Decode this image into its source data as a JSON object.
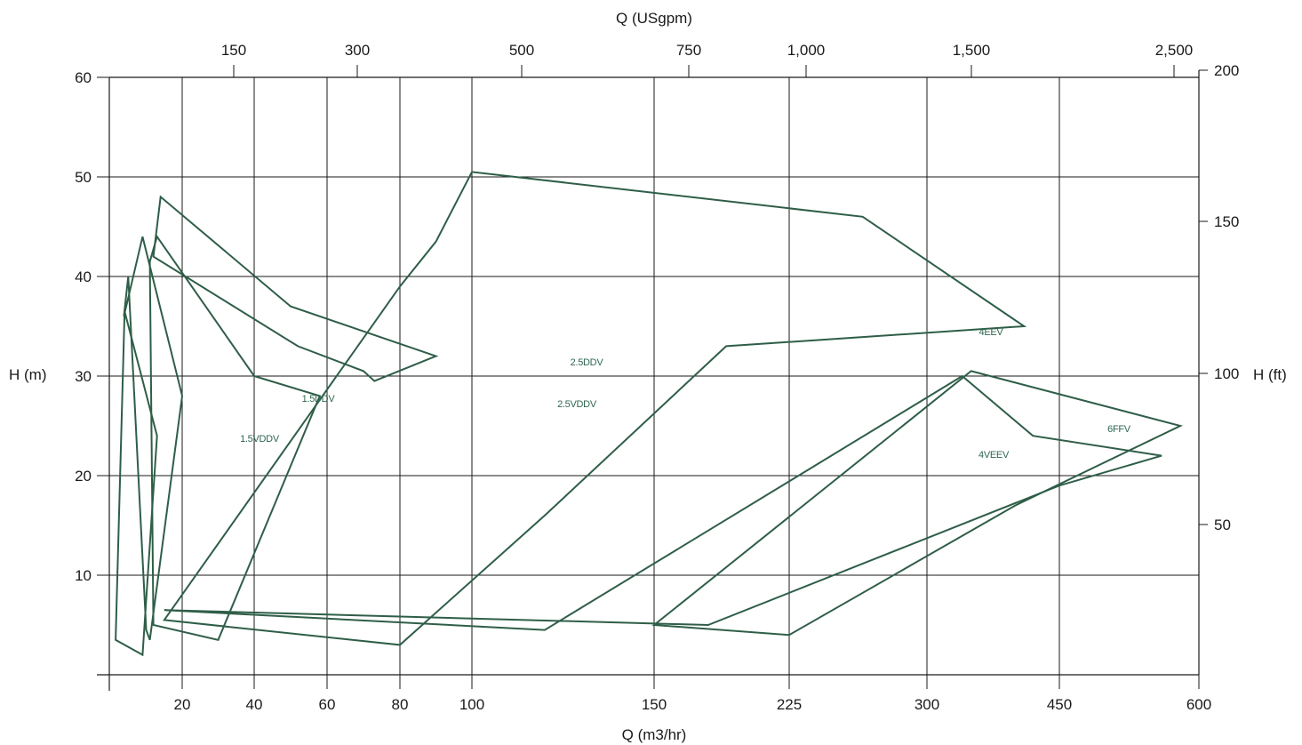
{
  "colors": {
    "curve": "#2f5e48",
    "grid": "#1a1a1a",
    "curve_label": "#2e6650"
  },
  "chart_data": {
    "type": "line",
    "title": "",
    "xlabel": "Q (m3/hr)",
    "x2label": "Q (USgpm)",
    "ylabel": "H (m)",
    "y2label": "H (ft)",
    "x_scale": "log",
    "x_ticks": [
      "20",
      "40",
      "60",
      "80",
      "100",
      "150",
      "225",
      "300",
      "450",
      "600"
    ],
    "x2_ticks": [
      "150",
      "300",
      "500",
      "750",
      "1,000",
      "1,500",
      "2,500"
    ],
    "ylim": [
      0,
      60
    ],
    "y_ticks": [
      "10",
      "20",
      "30",
      "40",
      "50",
      "60"
    ],
    "y2_ticks": [
      "50",
      "100",
      "150",
      "200"
    ],
    "grid": true,
    "series": [
      {
        "name": "1.5VDDV",
        "polygons": [
          [
            [
              1.5,
              3.5
            ],
            [
              4,
              36.5
            ],
            [
              13,
              24
            ],
            [
              9,
              2
            ]
          ]
        ]
      },
      {
        "name": "1.5DDV",
        "polygons": [
          [
            [
              3.8,
              36
            ],
            [
              9,
              44
            ],
            [
              20,
              28
            ],
            [
              11,
              3.5
            ],
            [
              10,
              4.5
            ],
            [
              5,
              40
            ]
          ]
        ]
      },
      {
        "name": "2.5VDDV",
        "polygons": [
          [
            [
              11,
              41.5
            ],
            [
              13,
              44
            ],
            [
              40,
              30
            ],
            [
              58,
              28
            ],
            [
              30,
              3.5
            ],
            [
              12,
              5
            ]
          ]
        ]
      },
      {
        "name": "2.5DDV",
        "polygons": [
          [
            [
              12,
              42
            ],
            [
              14,
              48
            ],
            [
              50,
              37
            ],
            [
              90,
              32
            ],
            [
              73,
              29.5
            ],
            [
              70,
              30.5
            ],
            [
              52,
              33
            ]
          ]
        ]
      },
      {
        "name": "4EEV",
        "polygons": [
          [
            [
              15,
              5.5
            ],
            [
              80,
              3
            ],
            [
              120,
              16
            ],
            [
              190,
              33
            ],
            [
              410,
              35
            ],
            [
              265,
              46
            ],
            [
              100,
              50.5
            ],
            [
              90,
              43.5
            ],
            [
              80,
              39
            ]
          ]
        ]
      },
      {
        "name": "4VEEV",
        "polygons": [
          [
            [
              15,
              6.5
            ],
            [
              120,
              4.5
            ],
            [
              340,
              30
            ],
            [
              420,
              24
            ],
            [
              560,
              22
            ],
            [
              450,
              19
            ],
            [
              180,
              5
            ]
          ]
        ]
      },
      {
        "name": "6FFV",
        "polygons": [
          [
            [
              150,
              5
            ],
            [
              225,
              4
            ],
            [
              400,
              17
            ],
            [
              580,
              25
            ],
            [
              350,
              30.5
            ]
          ]
        ]
      }
    ],
    "annotations": [
      "1.5VDDV",
      "1.5DDV",
      "2.5VDDV",
      "2.5DDV",
      "4EEV",
      "4VEEV",
      "6FFV"
    ]
  }
}
